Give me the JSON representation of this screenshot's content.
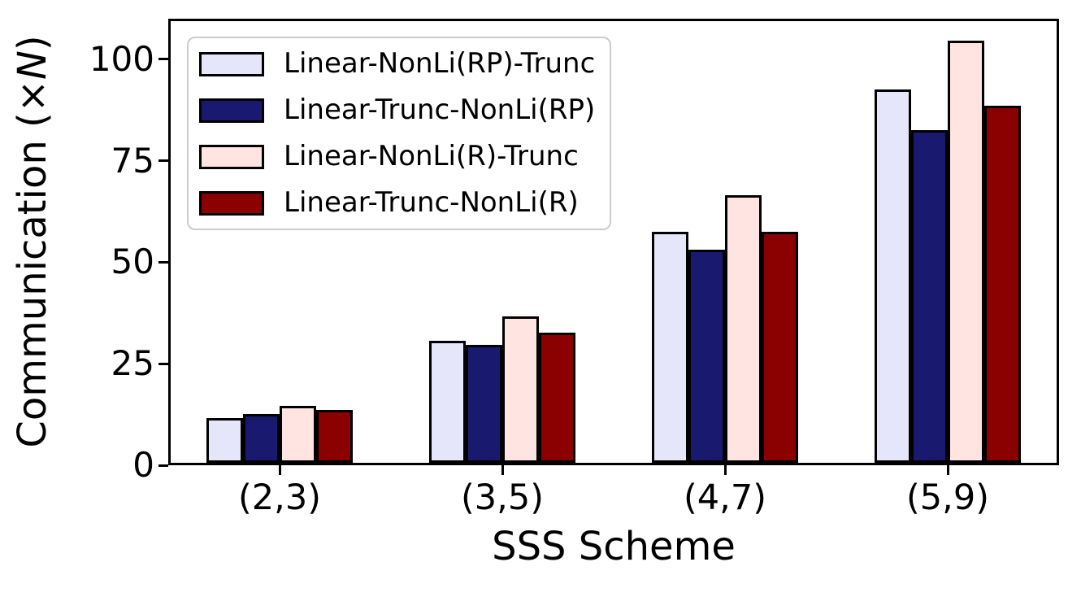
{
  "chart_data": {
    "type": "bar",
    "title": "",
    "xlabel": "SSS Scheme",
    "ylabel": "Communication (×N)",
    "ylabel_parts": {
      "prefix": "Communication (×",
      "variable": "N",
      "suffix": ")"
    },
    "categories": [
      "(2,3)",
      "(3,5)",
      "(4,7)",
      "(5,9)"
    ],
    "series": [
      {
        "name": "Linear-NonLi(RP)-Trunc",
        "color": "#E6E6FA",
        "values": [
          11,
          30,
          57,
          92
        ]
      },
      {
        "name": "Linear-Trunc-NonLi(RP)",
        "color": "#191970",
        "values": [
          12,
          29,
          52.5,
          82
        ]
      },
      {
        "name": "Linear-NonLi(R)-Trunc",
        "color": "#FFE4E1",
        "values": [
          14,
          36,
          66,
          104
        ]
      },
      {
        "name": "Linear-Trunc-NonLi(R)",
        "color": "#8B0000",
        "values": [
          13,
          32,
          57,
          88
        ]
      }
    ],
    "yticks": [
      0,
      25,
      50,
      75,
      100
    ],
    "ylim": [
      0,
      110
    ],
    "grid": false,
    "legend_position": "upper-left",
    "bar_edge_color": "#000000",
    "axis_color": "#000000",
    "background_color": "#FFFFFF"
  }
}
